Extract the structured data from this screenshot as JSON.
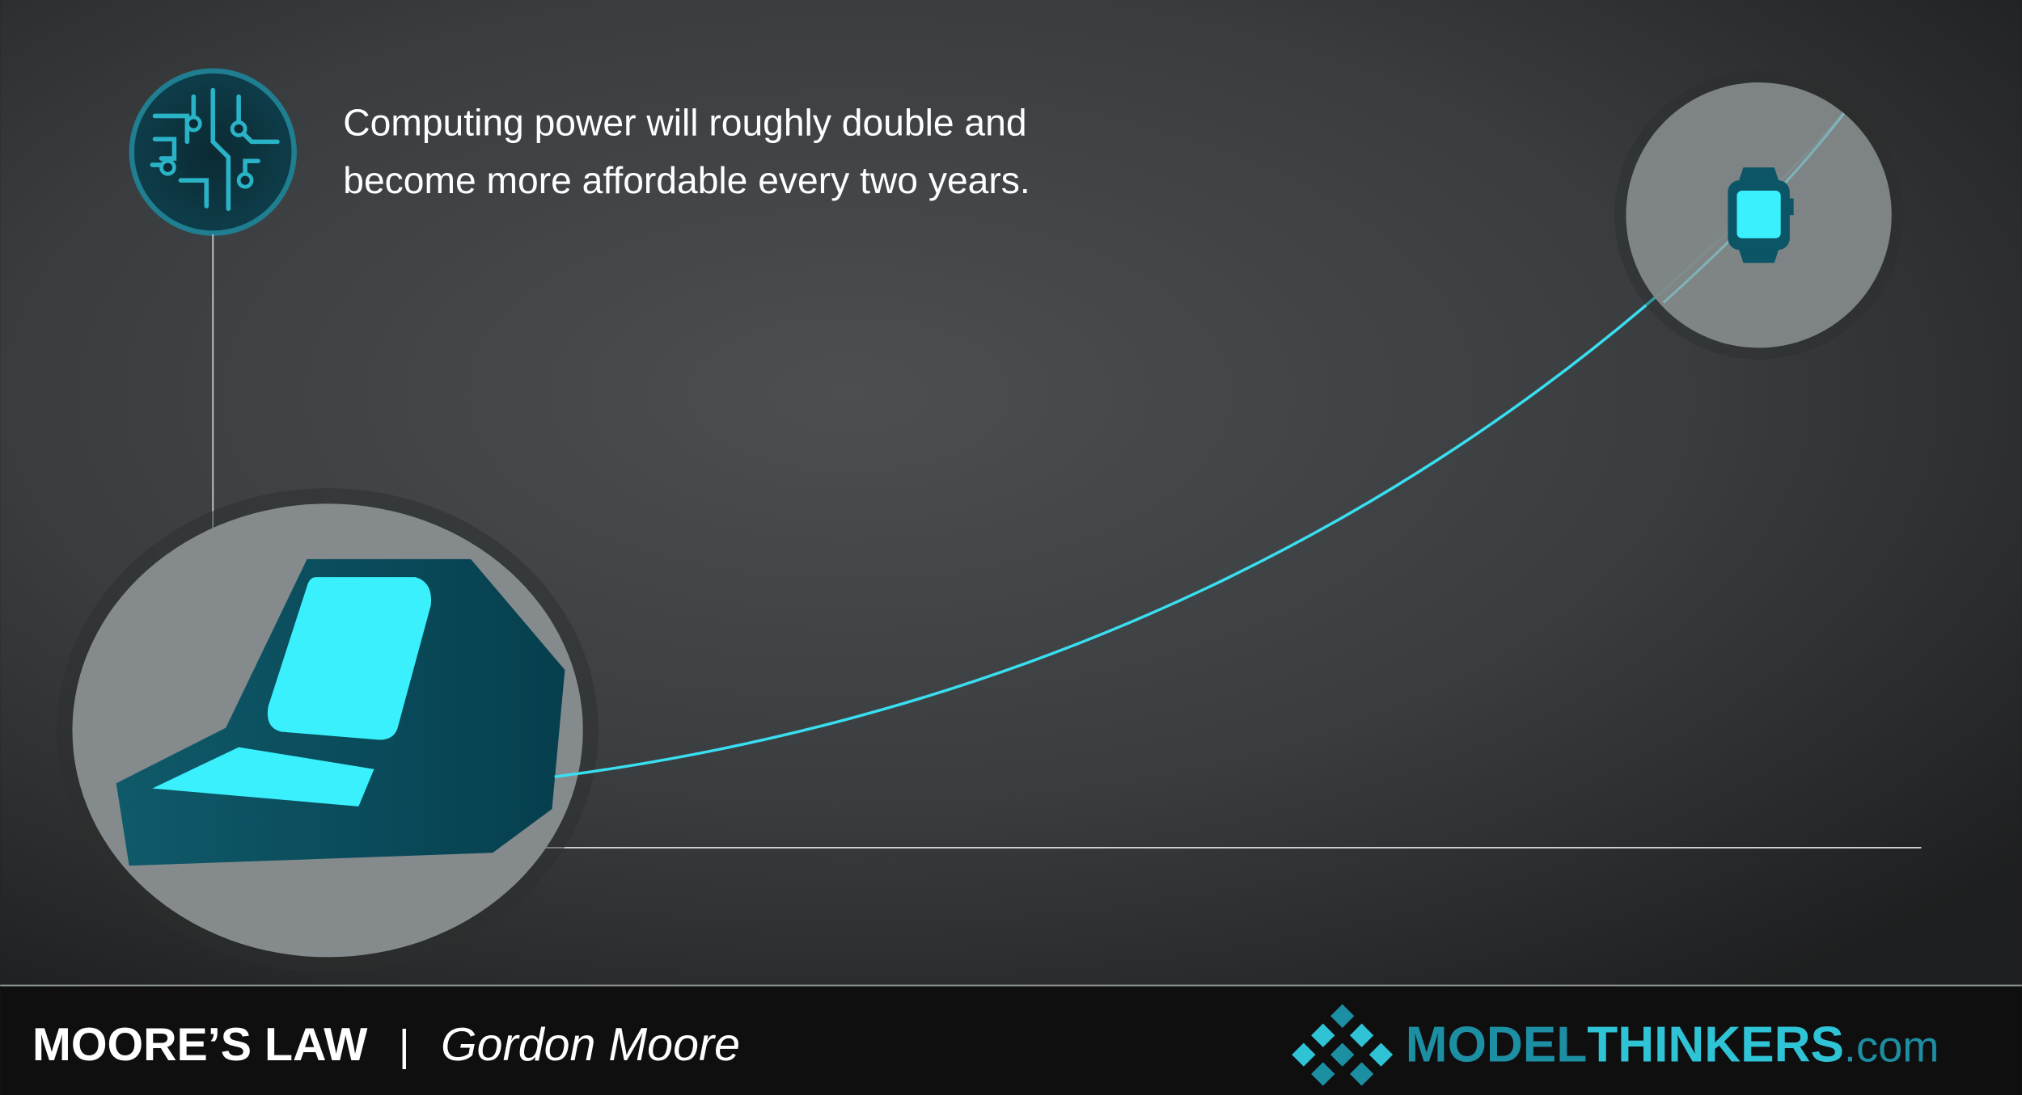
{
  "description": [
    "Computing power will roughly double and",
    "become more affordable every two years."
  ],
  "footer": {
    "title": "MOORE’S LAW",
    "separator": "|",
    "author": "Gordon Moore"
  },
  "brand": {
    "model": "MODEL",
    "thinkers": "THINKERS",
    "suffix": ".com"
  }
}
